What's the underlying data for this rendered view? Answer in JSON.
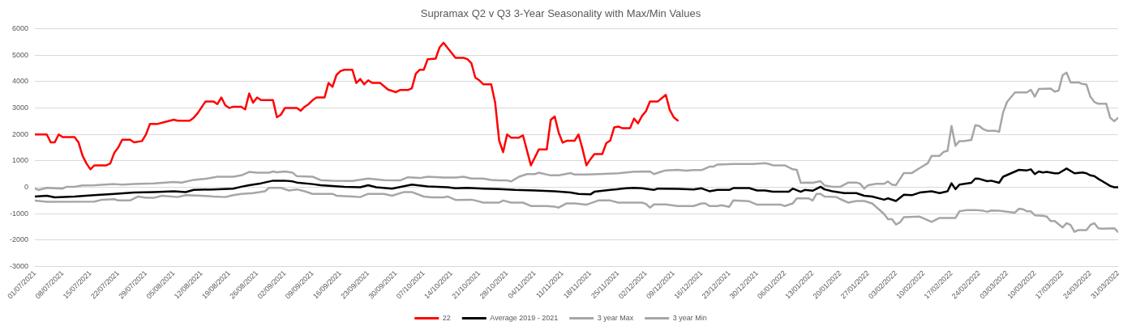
{
  "chart_data": {
    "type": "line",
    "title": "Supramax Q2 v Q3 3-Year Seasonality with Max/Min Values",
    "xlim": [
      "2021-07-01",
      "2022-03-31"
    ],
    "xticks": [
      {
        "value": "2021-07-01",
        "label": "01/07/2021"
      },
      {
        "value": "2021-07-08",
        "label": "08/07/2021"
      },
      {
        "value": "2021-07-15",
        "label": "15/07/2021"
      },
      {
        "value": "2021-07-22",
        "label": "22/07/2021"
      },
      {
        "value": "2021-07-29",
        "label": "29/07/2021"
      },
      {
        "value": "2021-08-05",
        "label": "05/08/2021"
      },
      {
        "value": "2021-08-12",
        "label": "12/08/2021"
      },
      {
        "value": "2021-08-19",
        "label": "19/08/2021"
      },
      {
        "value": "2021-08-26",
        "label": "26/08/2021"
      },
      {
        "value": "2021-09-02",
        "label": "02/09/2021"
      },
      {
        "value": "2021-09-09",
        "label": "09/09/2021"
      },
      {
        "value": "2021-09-16",
        "label": "16/09/2021"
      },
      {
        "value": "2021-09-23",
        "label": "23/09/2021"
      },
      {
        "value": "2021-09-30",
        "label": "30/09/2021"
      },
      {
        "value": "2021-10-07",
        "label": "07/10/2021"
      },
      {
        "value": "2021-10-14",
        "label": "14/10/2021"
      },
      {
        "value": "2021-10-21",
        "label": "21/10/2021"
      },
      {
        "value": "2021-10-28",
        "label": "28/10/2021"
      },
      {
        "value": "2021-11-04",
        "label": "04/11/2021"
      },
      {
        "value": "2021-11-11",
        "label": "11/11/2021"
      },
      {
        "value": "2021-11-18",
        "label": "18/11/2021"
      },
      {
        "value": "2021-11-25",
        "label": "25/11/2021"
      },
      {
        "value": "2021-12-02",
        "label": "02/12/2021"
      },
      {
        "value": "2021-12-09",
        "label": "09/12/2021"
      },
      {
        "value": "2021-12-16",
        "label": "16/12/2021"
      },
      {
        "value": "2021-12-23",
        "label": "23/12/2021"
      },
      {
        "value": "2021-12-30",
        "label": "30/12/2021"
      },
      {
        "value": "2022-01-06",
        "label": "06/01/2022"
      },
      {
        "value": "2022-01-13",
        "label": "13/01/2022"
      },
      {
        "value": "2022-01-20",
        "label": "20/01/2022"
      },
      {
        "value": "2022-01-27",
        "label": "27/01/2022"
      },
      {
        "value": "2022-02-03",
        "label": "03/02/2022"
      },
      {
        "value": "2022-02-10",
        "label": "10/02/2022"
      },
      {
        "value": "2022-02-17",
        "label": "17/02/2022"
      },
      {
        "value": "2022-02-24",
        "label": "24/02/2022"
      },
      {
        "value": "2022-03-03",
        "label": "03/03/2022"
      },
      {
        "value": "2022-03-10",
        "label": "10/03/2022"
      },
      {
        "value": "2022-03-17",
        "label": "17/03/2022"
      },
      {
        "value": "2022-03-24",
        "label": "24/03/2022"
      },
      {
        "value": "2022-03-31",
        "label": "31/03/2022"
      }
    ],
    "ylim": [
      -3000,
      6000
    ],
    "yticks": [
      -3000,
      -2000,
      -1000,
      0,
      1000,
      2000,
      3000,
      4000,
      5000,
      6000
    ],
    "grid": "y",
    "legend": "bottom",
    "marker": "none",
    "line_style": "solid",
    "series": [
      {
        "name": "22",
        "color": "#ff0000",
        "x": [
          "2021-07-01",
          "2021-07-04",
          "2021-07-05",
          "2021-07-06",
          "2021-07-07",
          "2021-07-08",
          "2021-07-11",
          "2021-07-12",
          "2021-07-13",
          "2021-07-14",
          "2021-07-15",
          "2021-07-16",
          "2021-07-19",
          "2021-07-20",
          "2021-07-21",
          "2021-07-22",
          "2021-07-23",
          "2021-07-25",
          "2021-07-26",
          "2021-07-28",
          "2021-07-29",
          "2021-07-30",
          "2021-08-01",
          "2021-08-03",
          "2021-08-05",
          "2021-08-06",
          "2021-08-09",
          "2021-08-10",
          "2021-08-11",
          "2021-08-13",
          "2021-08-15",
          "2021-08-16",
          "2021-08-17",
          "2021-08-18",
          "2021-08-19",
          "2021-08-20",
          "2021-08-22",
          "2021-08-23",
          "2021-08-24",
          "2021-08-25",
          "2021-08-26",
          "2021-08-27",
          "2021-08-30",
          "2021-08-31",
          "2021-09-01",
          "2021-09-02",
          "2021-09-05",
          "2021-09-06",
          "2021-09-07",
          "2021-09-08",
          "2021-09-09",
          "2021-09-10",
          "2021-09-12",
          "2021-09-13",
          "2021-09-14",
          "2021-09-15",
          "2021-09-16",
          "2021-09-17",
          "2021-09-19",
          "2021-09-20",
          "2021-09-21",
          "2021-09-22",
          "2021-09-23",
          "2021-09-24",
          "2021-09-26",
          "2021-09-28",
          "2021-09-30",
          "2021-10-01",
          "2021-10-03",
          "2021-10-04",
          "2021-10-05",
          "2021-10-06",
          "2021-10-07",
          "2021-10-08",
          "2021-10-10",
          "2021-10-11",
          "2021-10-12",
          "2021-10-15",
          "2021-10-17",
          "2021-10-18",
          "2021-10-19",
          "2021-10-20",
          "2021-10-21",
          "2021-10-22",
          "2021-10-24",
          "2021-10-25",
          "2021-10-26",
          "2021-10-27",
          "2021-10-28",
          "2021-10-29",
          "2021-10-31",
          "2021-11-01",
          "2021-11-03",
          "2021-11-05",
          "2021-11-07",
          "2021-11-08",
          "2021-11-09",
          "2021-11-10",
          "2021-11-11",
          "2021-11-12",
          "2021-11-14",
          "2021-11-15",
          "2021-11-16",
          "2021-11-17",
          "2021-11-18",
          "2021-11-19",
          "2021-11-21",
          "2021-11-22",
          "2021-11-23",
          "2021-11-24",
          "2021-11-25",
          "2021-11-26",
          "2021-11-28",
          "2021-11-29",
          "2021-11-30",
          "2021-12-01",
          "2021-12-02",
          "2021-12-03",
          "2021-12-05",
          "2021-12-07",
          "2021-12-08",
          "2021-12-09",
          "2021-12-10"
        ],
        "values": [
          2000,
          2000,
          1700,
          1700,
          2000,
          1900,
          1900,
          1700,
          1200,
          900,
          680,
          830,
          830,
          900,
          1300,
          1500,
          1800,
          1800,
          1700,
          1750,
          2000,
          2400,
          2400,
          2480,
          2560,
          2520,
          2520,
          2630,
          2800,
          3250,
          3250,
          3150,
          3400,
          3100,
          3000,
          3050,
          3050,
          2950,
          3550,
          3200,
          3400,
          3300,
          3300,
          2650,
          2750,
          3000,
          3000,
          2900,
          3050,
          3150,
          3300,
          3400,
          3400,
          3950,
          3800,
          4250,
          4400,
          4450,
          4450,
          3950,
          4100,
          3900,
          4050,
          3950,
          3950,
          3700,
          3600,
          3680,
          3680,
          3750,
          4300,
          4450,
          4450,
          4850,
          4870,
          5300,
          5470,
          4900,
          4900,
          4850,
          4700,
          4150,
          4050,
          3900,
          3900,
          3200,
          1770,
          1330,
          2000,
          1880,
          1880,
          1970,
          830,
          1430,
          1430,
          2550,
          2680,
          2070,
          1690,
          1760,
          1760,
          2000,
          1460,
          830,
          1060,
          1260,
          1260,
          1670,
          1770,
          2270,
          2300,
          2240,
          2240,
          2600,
          2420,
          2700,
          2880,
          3250,
          3250,
          3500,
          2930,
          2650,
          2530
        ]
      },
      {
        "name": "Average 2019 - 2021",
        "color": "#000000",
        "x": [
          "2021-07-01",
          "2021-07-04",
          "2021-07-06",
          "2021-07-11",
          "2021-07-16",
          "2021-07-21",
          "2021-07-26",
          "2021-07-31",
          "2021-08-05",
          "2021-08-08",
          "2021-08-10",
          "2021-08-15",
          "2021-08-20",
          "2021-08-22",
          "2021-08-24",
          "2021-08-27",
          "2021-08-30",
          "2021-09-02",
          "2021-09-04",
          "2021-09-05",
          "2021-09-09",
          "2021-09-11",
          "2021-09-14",
          "2021-09-17",
          "2021-09-21",
          "2021-09-23",
          "2021-09-25",
          "2021-09-29",
          "2021-10-04",
          "2021-10-08",
          "2021-10-13",
          "2021-10-15",
          "2021-10-18",
          "2021-10-22",
          "2021-10-26",
          "2021-10-30",
          "2021-11-04",
          "2021-11-09",
          "2021-11-13",
          "2021-11-15",
          "2021-11-18",
          "2021-11-19",
          "2021-11-23",
          "2021-11-27",
          "2021-11-29",
          "2021-12-01",
          "2021-12-04",
          "2021-12-05",
          "2021-12-10",
          "2021-12-14",
          "2021-12-16",
          "2021-12-18",
          "2021-12-20",
          "2021-12-23",
          "2021-12-24",
          "2021-12-28",
          "2021-12-30",
          "2022-01-01",
          "2022-01-03",
          "2022-01-07",
          "2022-01-08",
          "2022-01-10",
          "2022-01-11",
          "2022-01-13",
          "2022-01-15",
          "2022-01-16",
          "2022-01-18",
          "2022-01-21",
          "2022-01-24",
          "2022-01-26",
          "2022-01-28",
          "2022-01-31",
          "2022-02-01",
          "2022-02-03",
          "2022-02-05",
          "2022-02-07",
          "2022-02-09",
          "2022-02-12",
          "2022-02-14",
          "2022-02-16",
          "2022-02-17",
          "2022-02-18",
          "2022-02-19",
          "2022-02-22",
          "2022-02-23",
          "2022-02-24",
          "2022-02-26",
          "2022-02-27",
          "2022-03-01",
          "2022-03-02",
          "2022-03-04",
          "2022-03-06",
          "2022-03-08",
          "2022-03-09",
          "2022-03-10",
          "2022-03-11",
          "2022-03-12",
          "2022-03-13",
          "2022-03-15",
          "2022-03-16",
          "2022-03-18",
          "2022-03-20",
          "2022-03-22",
          "2022-03-23",
          "2022-03-24",
          "2022-03-25",
          "2022-03-26",
          "2022-03-27",
          "2022-03-29",
          "2022-03-30",
          "2022-03-31"
        ],
        "values": [
          -350,
          -320,
          -380,
          -350,
          -300,
          -250,
          -200,
          -180,
          -150,
          -180,
          -100,
          -80,
          -50,
          20,
          80,
          150,
          250,
          250,
          220,
          180,
          120,
          80,
          50,
          20,
          0,
          80,
          0,
          -50,
          100,
          30,
          0,
          -40,
          -20,
          -50,
          -70,
          -100,
          -120,
          -150,
          -200,
          -250,
          -270,
          -170,
          -100,
          -40,
          -20,
          -40,
          -100,
          -50,
          -60,
          -80,
          -40,
          -150,
          -100,
          -100,
          -30,
          -30,
          -120,
          -120,
          -170,
          -170,
          -50,
          -170,
          -100,
          -130,
          20,
          -80,
          -150,
          -220,
          -220,
          -320,
          -350,
          -470,
          -420,
          -520,
          -280,
          -300,
          -200,
          -150,
          -220,
          -150,
          150,
          -70,
          100,
          170,
          330,
          320,
          230,
          250,
          170,
          400,
          530,
          660,
          640,
          680,
          500,
          600,
          560,
          580,
          530,
          530,
          710,
          530,
          560,
          530,
          450,
          420,
          320,
          230,
          50,
          0,
          0
        ]
      },
      {
        "name": "3 year Max",
        "color": "#a6a6a6",
        "x": [
          "2021-07-01",
          "2021-07-02",
          "2021-07-04",
          "2021-07-08",
          "2021-07-09",
          "2021-07-11",
          "2021-07-13",
          "2021-07-16",
          "2021-07-21",
          "2021-07-23",
          "2021-07-26",
          "2021-07-31",
          "2021-08-05",
          "2021-08-07",
          "2021-08-10",
          "2021-08-13",
          "2021-08-16",
          "2021-08-20",
          "2021-08-22",
          "2021-08-24",
          "2021-08-26",
          "2021-08-29",
          "2021-08-30",
          "2021-08-31",
          "2021-09-02",
          "2021-09-04",
          "2021-09-05",
          "2021-09-09",
          "2021-09-11",
          "2021-09-14",
          "2021-09-19",
          "2021-09-23",
          "2021-09-27",
          "2021-10-01",
          "2021-10-03",
          "2021-10-06",
          "2021-10-08",
          "2021-10-12",
          "2021-10-15",
          "2021-10-17",
          "2021-10-19",
          "2021-10-22",
          "2021-10-24",
          "2021-10-26",
          "2021-10-28",
          "2021-10-29",
          "2021-10-31",
          "2021-11-02",
          "2021-11-04",
          "2021-11-05",
          "2021-11-08",
          "2021-11-10",
          "2021-11-13",
          "2021-11-14",
          "2021-11-17",
          "2021-11-20",
          "2021-11-25",
          "2021-11-27",
          "2021-11-29",
          "2021-12-03",
          "2021-12-04",
          "2021-12-06",
          "2021-12-07",
          "2021-12-10",
          "2021-12-12",
          "2021-12-14",
          "2021-12-16",
          "2021-12-18",
          "2021-12-19",
          "2021-12-20",
          "2021-12-24",
          "2021-12-29",
          "2022-01-01",
          "2022-01-02",
          "2022-01-03",
          "2022-01-06",
          "2022-01-08",
          "2022-01-09",
          "2022-01-10",
          "2022-01-12",
          "2022-01-13",
          "2022-01-15",
          "2022-01-16",
          "2022-01-18",
          "2022-01-20",
          "2022-01-22",
          "2022-01-24",
          "2022-01-25",
          "2022-01-26",
          "2022-01-27",
          "2022-01-29",
          "2022-01-31",
          "2022-02-01",
          "2022-02-02",
          "2022-02-03",
          "2022-02-05",
          "2022-02-07",
          "2022-02-09",
          "2022-02-11",
          "2022-02-12",
          "2022-02-14",
          "2022-02-15",
          "2022-02-16",
          "2022-02-17",
          "2022-02-18",
          "2022-02-19",
          "2022-02-20",
          "2022-02-22",
          "2022-02-23",
          "2022-02-24",
          "2022-02-25",
          "2022-02-26",
          "2022-02-28",
          "2022-03-01",
          "2022-03-02",
          "2022-03-03",
          "2022-03-05",
          "2022-03-08",
          "2022-03-09",
          "2022-03-10",
          "2022-03-11",
          "2022-03-14",
          "2022-03-15",
          "2022-03-16",
          "2022-03-17",
          "2022-03-18",
          "2022-03-19",
          "2022-03-21",
          "2022-03-22",
          "2022-03-23",
          "2022-03-24",
          "2022-03-25",
          "2022-03-26",
          "2022-03-28",
          "2022-03-29",
          "2022-03-30",
          "2022-03-31"
        ],
        "values": [
          -50,
          -100,
          -20,
          -50,
          20,
          20,
          70,
          80,
          120,
          100,
          120,
          150,
          200,
          180,
          280,
          320,
          400,
          400,
          450,
          580,
          550,
          550,
          600,
          570,
          600,
          550,
          420,
          400,
          270,
          250,
          240,
          330,
          270,
          260,
          380,
          350,
          400,
          370,
          370,
          400,
          330,
          330,
          280,
          260,
          260,
          220,
          400,
          500,
          500,
          550,
          450,
          450,
          540,
          480,
          480,
          500,
          530,
          560,
          590,
          600,
          500,
          600,
          640,
          660,
          630,
          650,
          650,
          780,
          780,
          860,
          880,
          880,
          910,
          880,
          830,
          830,
          680,
          660,
          170,
          180,
          170,
          230,
          70,
          20,
          20,
          180,
          180,
          130,
          -50,
          80,
          130,
          130,
          220,
          100,
          80,
          540,
          540,
          730,
          910,
          1190,
          1190,
          1340,
          1380,
          2320,
          1570,
          1750,
          1750,
          1790,
          2350,
          2320,
          2200,
          2140,
          2140,
          2100,
          2830,
          3230,
          3590,
          3590,
          3690,
          3430,
          3720,
          3740,
          3620,
          3660,
          4240,
          4340,
          3970,
          3970,
          3910,
          3890,
          3430,
          3230,
          3160,
          3160,
          2630,
          2500,
          2630
        ]
      },
      {
        "name": "3 year Min",
        "color": "#a6a6a6",
        "x": [
          "2021-07-01",
          "2021-07-04",
          "2021-07-16",
          "2021-07-18",
          "2021-07-21",
          "2021-07-22",
          "2021-07-25",
          "2021-07-27",
          "2021-07-29",
          "2021-07-31",
          "2021-08-02",
          "2021-08-06",
          "2021-08-08",
          "2021-08-12",
          "2021-08-15",
          "2021-08-18",
          "2021-08-20",
          "2021-08-22",
          "2021-08-25",
          "2021-08-28",
          "2021-08-29",
          "2021-09-01",
          "2021-09-03",
          "2021-09-05",
          "2021-09-07",
          "2021-09-09",
          "2021-09-14",
          "2021-09-15",
          "2021-09-19",
          "2021-09-21",
          "2021-09-23",
          "2021-09-27",
          "2021-09-29",
          "2021-10-02",
          "2021-10-04",
          "2021-10-07",
          "2021-10-09",
          "2021-10-12",
          "2021-10-13",
          "2021-10-15",
          "2021-10-19",
          "2021-10-20",
          "2021-10-22",
          "2021-10-26",
          "2021-10-27",
          "2021-10-29",
          "2021-11-01",
          "2021-11-03",
          "2021-11-07",
          "2021-11-09",
          "2021-11-10",
          "2021-11-12",
          "2021-11-14",
          "2021-11-17",
          "2021-11-20",
          "2021-11-23",
          "2021-11-25",
          "2021-12-01",
          "2021-12-02",
          "2021-12-03",
          "2021-12-04",
          "2021-12-07",
          "2021-12-10",
          "2021-12-14",
          "2021-12-16",
          "2021-12-17",
          "2021-12-18",
          "2021-12-20",
          "2021-12-21",
          "2021-12-23",
          "2021-12-24",
          "2021-12-28",
          "2021-12-30",
          "2022-01-05",
          "2022-01-06",
          "2022-01-08",
          "2022-01-09",
          "2022-01-12",
          "2022-01-13",
          "2022-01-14",
          "2022-01-15",
          "2022-01-16",
          "2022-01-19",
          "2022-01-20",
          "2022-01-22",
          "2022-01-24",
          "2022-01-26",
          "2022-01-28",
          "2022-01-31",
          "2022-02-01",
          "2022-02-02",
          "2022-02-03",
          "2022-02-04",
          "2022-02-05",
          "2022-02-09",
          "2022-02-12",
          "2022-02-14",
          "2022-02-18",
          "2022-02-19",
          "2022-02-21",
          "2022-02-23",
          "2022-02-25",
          "2022-02-26",
          "2022-02-27",
          "2022-03-01",
          "2022-03-05",
          "2022-03-06",
          "2022-03-07",
          "2022-03-08",
          "2022-03-09",
          "2022-03-10",
          "2022-03-12",
          "2022-03-13",
          "2022-03-14",
          "2022-03-15",
          "2022-03-17",
          "2022-03-18",
          "2022-03-19",
          "2022-03-20",
          "2022-03-21",
          "2022-03-23",
          "2022-03-24",
          "2022-03-25",
          "2022-03-26",
          "2022-03-27",
          "2022-03-30",
          "2022-03-31"
        ],
        "values": [
          -500,
          -550,
          -540,
          -470,
          -450,
          -500,
          -500,
          -350,
          -400,
          -400,
          -320,
          -370,
          -300,
          -320,
          -350,
          -370,
          -300,
          -250,
          -220,
          -150,
          -20,
          -20,
          -120,
          -80,
          -150,
          -250,
          -250,
          -320,
          -350,
          -370,
          -250,
          -250,
          -320,
          -180,
          -180,
          -350,
          -380,
          -380,
          -350,
          -480,
          -470,
          -500,
          -580,
          -580,
          -500,
          -580,
          -580,
          -710,
          -710,
          -730,
          -770,
          -610,
          -610,
          -660,
          -500,
          -500,
          -580,
          -580,
          -630,
          -770,
          -650,
          -650,
          -710,
          -710,
          -610,
          -610,
          -710,
          -710,
          -680,
          -740,
          -500,
          -530,
          -660,
          -660,
          -710,
          -610,
          -420,
          -420,
          -500,
          -250,
          -250,
          -350,
          -370,
          -450,
          -580,
          -520,
          -520,
          -610,
          -1010,
          -1210,
          -1210,
          -1410,
          -1330,
          -1130,
          -1110,
          -1310,
          -1160,
          -1160,
          -910,
          -860,
          -860,
          -890,
          -930,
          -880,
          -890,
          -960,
          -810,
          -830,
          -910,
          -910,
          -1060,
          -1080,
          -1110,
          -1280,
          -1280,
          -1520,
          -1360,
          -1430,
          -1690,
          -1620,
          -1620,
          -1430,
          -1360,
          -1550,
          -1570,
          -1550,
          -1690
        ]
      }
    ]
  }
}
